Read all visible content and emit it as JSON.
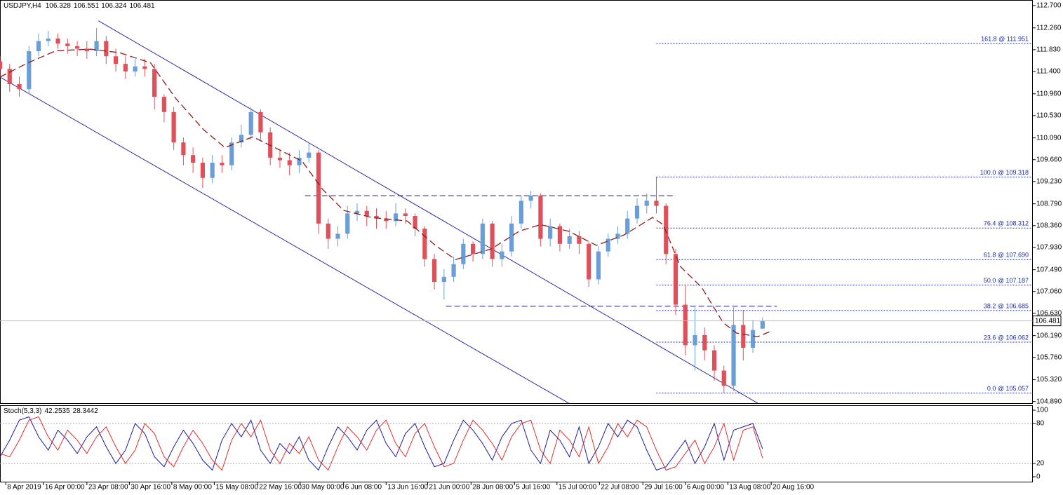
{
  "chart_data": {
    "type": "candlestick",
    "title": "USDJPY,H4",
    "xlim": [
      0,
      107
    ],
    "xticks": [
      {
        "value": 0.6,
        "label": "8 Apr 2019"
      },
      {
        "value": 4.5,
        "label": "16 Apr 00:00"
      },
      {
        "value": 9,
        "label": "23 Apr 08:00"
      },
      {
        "value": 13.4,
        "label": "30 Apr 16:00"
      },
      {
        "value": 17.8,
        "label": "8 May 00:00"
      },
      {
        "value": 22.2,
        "label": "15 May 08:00"
      },
      {
        "value": 26.7,
        "label": "22 May 16:00"
      },
      {
        "value": 31.1,
        "label": "30 May 00:00"
      },
      {
        "value": 35.6,
        "label": "6 Jun 08:00"
      },
      {
        "value": 40,
        "label": "13 Jun 16:00"
      },
      {
        "value": 44.3,
        "label": "21 Jun 00:00"
      },
      {
        "value": 48.8,
        "label": "28 Jun 08:00"
      },
      {
        "value": 53.3,
        "label": "5 Jul 16:00"
      },
      {
        "value": 57.7,
        "label": "15 Jul 00:00"
      },
      {
        "value": 62.1,
        "label": "22 Jul 08:00"
      },
      {
        "value": 66.6,
        "label": "29 Jul 16:00"
      },
      {
        "value": 71,
        "label": "6 Aug 00:00"
      },
      {
        "value": 75.4,
        "label": "13 Aug 08:00"
      },
      {
        "value": 79.9,
        "label": "20 Aug 16:00"
      }
    ],
    "ylim": [
      104.858,
      112.81
    ],
    "yticks": [
      {
        "value": 112.7,
        "label": "112.700"
      },
      {
        "value": 112.26,
        "label": "112.260"
      },
      {
        "value": 111.83,
        "label": "111.830"
      },
      {
        "value": 111.4,
        "label": "111.400"
      },
      {
        "value": 110.96,
        "label": "110.960"
      },
      {
        "value": 110.53,
        "label": "110.530"
      },
      {
        "value": 110.09,
        "label": "110.090"
      },
      {
        "value": 109.66,
        "label": "109.660"
      },
      {
        "value": 109.23,
        "label": "109.230"
      },
      {
        "value": 108.79,
        "label": "108.790"
      },
      {
        "value": 108.36,
        "label": "108.360"
      },
      {
        "value": 107.93,
        "label": "107.930"
      },
      {
        "value": 107.49,
        "label": "107.490"
      },
      {
        "value": 107.06,
        "label": "107.060"
      },
      {
        "value": 106.63,
        "label": "106.630"
      },
      {
        "value": 106.19,
        "label": "106.190"
      },
      {
        "value": 105.76,
        "label": "105.760"
      },
      {
        "value": 105.32,
        "label": "105.320"
      },
      {
        "value": 104.89,
        "label": "104.890"
      }
    ],
    "up_color": "#6a9ed8",
    "down_color": "#e0505a",
    "open": [
      111.6,
      111.45,
      111.15,
      111.05,
      111.8,
      112.0,
      112.05,
      111.95,
      111.9,
      111.85,
      111.8,
      112.0,
      111.7,
      111.55,
      111.4,
      111.5,
      111.45,
      110.9,
      110.6,
      110.0,
      109.75,
      109.6,
      109.3,
      109.6,
      109.55,
      110.0,
      110.15,
      110.6,
      110.2,
      109.7,
      109.65,
      109.55,
      109.7,
      109.8,
      108.4,
      108.1,
      108.2,
      108.6,
      108.65,
      108.55,
      108.5,
      108.45,
      108.6,
      108.55,
      108.3,
      107.7,
      107.25,
      107.35,
      107.6,
      108.0,
      107.8,
      108.4,
      107.7,
      107.85,
      108.4,
      108.85,
      108.95,
      108.1,
      108.35,
      108.0,
      108.15,
      108.0,
      107.3,
      107.85,
      108.1,
      108.2,
      108.5,
      108.75,
      108.85,
      108.75,
      107.8,
      106.8,
      106.0,
      106.2,
      105.9,
      105.5,
      105.2,
      106.4,
      105.95,
      106.328
    ],
    "high": [
      111.7,
      111.55,
      111.3,
      111.9,
      112.15,
      112.2,
      112.15,
      112.05,
      112.0,
      112.0,
      112.26,
      112.1,
      111.85,
      111.7,
      111.65,
      111.65,
      111.55,
      110.95,
      110.7,
      110.1,
      109.9,
      109.7,
      109.75,
      109.75,
      110.1,
      110.35,
      110.7,
      110.65,
      110.3,
      109.85,
      109.8,
      109.85,
      110.0,
      109.85,
      108.5,
      108.35,
      108.75,
      108.8,
      108.75,
      108.7,
      108.65,
      108.8,
      108.7,
      108.6,
      108.35,
      107.8,
      107.5,
      107.75,
      108.1,
      108.05,
      108.5,
      108.45,
      108.0,
      108.55,
      108.95,
      109.05,
      109.0,
      108.5,
      108.4,
      108.3,
      108.25,
      108.05,
      107.95,
      108.2,
      108.35,
      108.65,
      108.9,
      109.0,
      109.32,
      108.8,
      107.9,
      107.2,
      106.75,
      106.35,
      106.0,
      105.6,
      106.75,
      106.7,
      106.5,
      106.551
    ],
    "low": [
      111.3,
      111.0,
      110.9,
      110.95,
      111.7,
      111.9,
      111.85,
      111.75,
      111.7,
      111.65,
      111.7,
      111.55,
      111.4,
      111.25,
      111.3,
      111.3,
      110.65,
      110.4,
      109.85,
      109.55,
      109.4,
      109.1,
      109.2,
      109.4,
      109.45,
      109.9,
      110.05,
      110.05,
      109.55,
      109.5,
      109.35,
      109.4,
      109.6,
      108.2,
      107.9,
      107.95,
      108.1,
      108.45,
      108.35,
      108.3,
      108.3,
      108.35,
      108.4,
      108.15,
      107.55,
      107.1,
      106.9,
      107.25,
      107.5,
      107.65,
      107.7,
      107.55,
      107.55,
      107.75,
      108.3,
      108.7,
      107.95,
      107.95,
      107.85,
      107.9,
      107.8,
      107.15,
      107.2,
      107.75,
      108.0,
      108.1,
      108.4,
      108.6,
      108.6,
      107.6,
      106.6,
      105.8,
      105.5,
      105.7,
      105.3,
      105.057,
      105.1,
      105.7,
      105.85,
      106.324
    ],
    "close": [
      111.45,
      111.15,
      111.05,
      111.8,
      112.0,
      112.05,
      111.95,
      111.9,
      111.85,
      111.8,
      112.0,
      111.7,
      111.55,
      111.4,
      111.5,
      111.45,
      110.9,
      110.6,
      110.0,
      109.75,
      109.6,
      109.3,
      109.6,
      109.55,
      110.0,
      110.15,
      110.6,
      110.2,
      109.7,
      109.65,
      109.55,
      109.7,
      109.8,
      108.4,
      108.1,
      108.2,
      108.6,
      108.65,
      108.55,
      108.5,
      108.45,
      108.6,
      108.55,
      108.3,
      107.7,
      107.25,
      107.35,
      107.6,
      108.0,
      107.8,
      108.4,
      107.7,
      107.85,
      108.4,
      108.85,
      108.95,
      108.1,
      108.35,
      108.0,
      108.15,
      108.0,
      107.3,
      107.85,
      108.1,
      108.2,
      108.5,
      108.75,
      108.85,
      108.75,
      107.8,
      106.8,
      106.0,
      106.2,
      105.9,
      105.5,
      105.2,
      106.4,
      105.95,
      106.3,
      106.481
    ],
    "ma": {
      "color": "#8b1a1a",
      "x": [
        0,
        2.9,
        5.8,
        9.4,
        12.4,
        15.6,
        18.2,
        21.1,
        23.3,
        26.2,
        29.1,
        31.3,
        33.4,
        35.6,
        38.5,
        42.2,
        45.1,
        47.2,
        50.9,
        53.8,
        56,
        58.9,
        61.8,
        64.7,
        67.6,
        68.7,
        70.5,
        72.7,
        74.9,
        76.3,
        78.5,
        79.9
      ],
      "values": [
        111.29,
        111.57,
        111.81,
        111.84,
        111.77,
        111.57,
        110.87,
        110.25,
        109.9,
        110.11,
        109.84,
        109.63,
        109.08,
        108.66,
        108.52,
        108.45,
        107.97,
        107.69,
        107.9,
        108.25,
        108.38,
        108.25,
        107.97,
        108.18,
        108.52,
        108.38,
        107.55,
        107.14,
        106.45,
        106.24,
        106.17,
        106.28
      ]
    },
    "channel_color": "#2a2aa0",
    "channel_lines": [
      {
        "x": [
          10.2,
          78.5
        ],
        "y": [
          112.4,
          104.857
        ]
      },
      {
        "x": [
          0,
          58.9
        ],
        "y": [
          111.29,
          104.86
        ]
      }
    ],
    "levels": [
      {
        "x": [
          31.6,
          70.0
        ],
        "y": 108.95
      },
      {
        "x": [
          46.2,
          80.5
        ],
        "y": 106.77
      }
    ],
    "fib_start": 68,
    "fibonacci": [
      {
        "label": "161.8 @ 111.951",
        "value": 111.951
      },
      {
        "label": "100.0 @ 109.318",
        "value": 109.318
      },
      {
        "label": "76.4 @ 108.312",
        "value": 108.312
      },
      {
        "label": "61.8 @ 107.690",
        "value": 107.69
      },
      {
        "label": "50.0 @ 107.187",
        "value": 107.187
      },
      {
        "label": "38.2 @ 106.685",
        "value": 106.685
      },
      {
        "label": "23.6 @ 106.062",
        "value": 106.062
      },
      {
        "label": "0.0 @ 105.057",
        "value": 105.057
      }
    ],
    "indicator": {
      "name": "Stoch(5,3,3)",
      "ylim": [
        -8.4,
        107.4
      ],
      "yticks": [
        100,
        80,
        20,
        0
      ],
      "levels": [
        80,
        20
      ],
      "series": [
        {
          "color": "#1c1c9c",
          "values": [
            30,
            55,
            85,
            90,
            60,
            40,
            70,
            55,
            35,
            60,
            75,
            45,
            20,
            40,
            80,
            65,
            30,
            15,
            45,
            70,
            50,
            25,
            10,
            55,
            80,
            60,
            85,
            40,
            20,
            50,
            35,
            60,
            25,
            10,
            45,
            75,
            60,
            40,
            70,
            85,
            50,
            30,
            65,
            80,
            45,
            15,
            20,
            55,
            85,
            70,
            50,
            25,
            60,
            80,
            85,
            40,
            20,
            70,
            55,
            30,
            75,
            20,
            45,
            80,
            60,
            85,
            75,
            40,
            10,
            15,
            35,
            55,
            20,
            45,
            80,
            25,
            70,
            75,
            80,
            42.2535
          ]
        },
        {
          "color": "#e03030",
          "values": [
            35,
            30,
            55,
            85,
            90,
            60,
            40,
            70,
            55,
            35,
            60,
            75,
            45,
            20,
            40,
            80,
            65,
            30,
            15,
            45,
            70,
            50,
            25,
            10,
            55,
            80,
            60,
            85,
            40,
            20,
            50,
            35,
            60,
            25,
            10,
            45,
            75,
            60,
            40,
            70,
            85,
            50,
            30,
            65,
            80,
            45,
            15,
            20,
            55,
            85,
            70,
            50,
            25,
            60,
            80,
            85,
            40,
            20,
            70,
            55,
            30,
            75,
            20,
            45,
            80,
            60,
            85,
            75,
            40,
            10,
            15,
            35,
            55,
            20,
            45,
            80,
            25,
            70,
            75,
            28.3442
          ]
        }
      ]
    }
  }
}
